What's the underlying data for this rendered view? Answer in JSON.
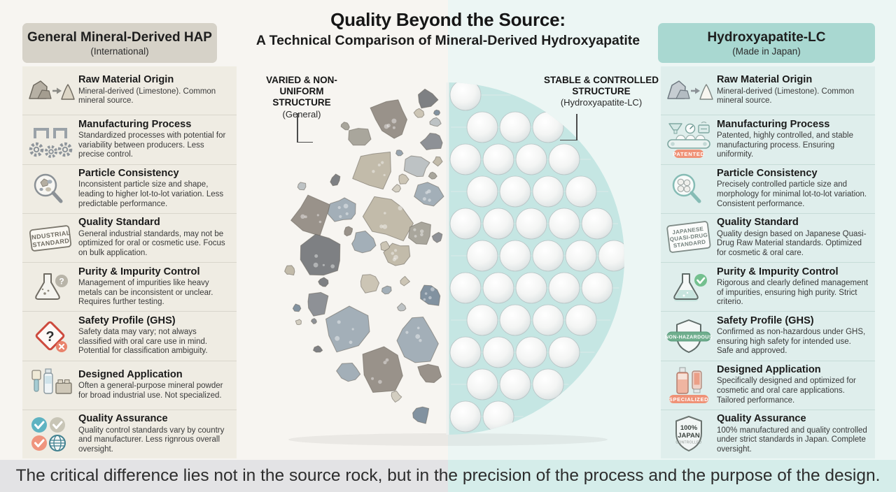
{
  "title": {
    "line1": "Quality Beyond the Source:",
    "line2": "A Technical Comparison of Mineral-Derived Hydroxyapatite"
  },
  "left_panel": {
    "header": {
      "title": "General Mineral-Derived HAP",
      "subtitle": "(International)"
    },
    "rows": [
      {
        "icon": "rocks-to-powder-icon",
        "title": "Raw Material Origin",
        "body": "Mineral-derived (Limestone). Common mineral source."
      },
      {
        "icon": "pipes-gears-icon",
        "title": "Manufacturing Process",
        "body": "Standardized processes with potential for variability between producers. Less precise control."
      },
      {
        "icon": "magnifier-irregular-particles-icon",
        "title": "Particle Consistency",
        "body": "Inconsistent particle size and shape, leading to higher lot-to-lot variation. Less predictable performance."
      },
      {
        "icon": "industrial-standard-stamp-icon",
        "icon_lines": [
          "INDUSTRIAL",
          "STANDARD"
        ],
        "title": "Quality Standard",
        "body": "General industrial standards, may not be optimized for oral or cosmetic use. Focus on bulk application."
      },
      {
        "icon": "flask-question-icon",
        "icon_text": "?",
        "title": "Purity & Impurity Control",
        "body": "Management of impurities like heavy metals can be inconsistent or unclear. Requires further testing."
      },
      {
        "icon": "hazard-question-icon",
        "icon_text": "?",
        "title": "Safety Profile (GHS)",
        "body": "Safety data may vary; not always classified with oral care use in mind. Potential for classification ambiguity."
      },
      {
        "icon": "brush-tube-block-icon",
        "title": "Designed Application",
        "body": "Often a general-purpose mineral powder for broad industrial use. Not specialized."
      },
      {
        "icon": "mixed-checks-globe-icon",
        "title": "Quality Assurance",
        "body": "Quality control standards vary by country and manufacturer. Less rignrous overall oversight."
      }
    ]
  },
  "right_panel": {
    "header": {
      "title": "Hydroxyapatite-LC",
      "subtitle": "(Made in Japan)"
    },
    "rows": [
      {
        "icon": "rocks-to-powder-icon",
        "title": "Raw Material Origin",
        "body": "Mineral-derived (Limestone). Common mineral source."
      },
      {
        "icon": "conveyor-patented-icon",
        "icon_text": "PATENTED",
        "title": "Manufacturing Process",
        "body": "Patented, highly controlled, and stable manufacturing process. Ensuring uniformity."
      },
      {
        "icon": "magnifier-uniform-particles-icon",
        "title": "Particle Consistency",
        "body": "Precisely controlled particle size and morphology for minimal lot-to-lot variation. Consistent performance."
      },
      {
        "icon": "japanese-quasi-drug-stamp-icon",
        "icon_lines": [
          "JAPANESE",
          "QUASI-DRUG",
          "STANDARD"
        ],
        "title": "Quality Standard",
        "body": "Quality design based on Japanese Quasi-Drug Raw Material standards. Optimized for cosmetic & oral care."
      },
      {
        "icon": "flask-check-icon",
        "title": "Purity & Impurity Control",
        "body": "Rigorous and clearly defined management of impurities, ensuring high purity. Strict criterio."
      },
      {
        "icon": "shield-non-hazardous-icon",
        "icon_text": "NON-HAZARDOUS",
        "title": "Safety Profile (GHS)",
        "body": "Confirmed as non-hazardous under GHS, ensuring high safety for intended use. Safe and approved."
      },
      {
        "icon": "cosmetics-specialized-icon",
        "icon_text": "SPECIALIZED",
        "title": "Designed Application",
        "body": "Specifically designed and optimized for cosmetic and oral care applications. Tailored performance."
      },
      {
        "icon": "japan-quality-shield-icon",
        "icon_lines": [
          "100%",
          "JAPAN",
          "CONTROLLED"
        ],
        "title": "Quality Assurance",
        "body": "100% manufactured and quality controlled under strict standards in Japan. Complete oversight."
      }
    ]
  },
  "center": {
    "left_label": {
      "line1": "VARIED & NON-UNIFORM",
      "line2": "STRUCTURE",
      "line3": "(General)"
    },
    "right_label": {
      "line1": "STABLE & CONTROLLED",
      "line2": "STRUCTURE",
      "line3": "(Hydroxyapatite-LC)"
    }
  },
  "footer_text": "The critical difference lies not in the source rock, but in the precision of the process and the purpose of the design.",
  "colors": {
    "left_header_bg": "#d6d2c8",
    "right_header_bg": "#a9d8d1",
    "left_panel_bg": "#efece3",
    "right_panel_bg": "#dfeeec",
    "teal_half_disc": "#c5e6e3",
    "accent_salmon": "#ef9277",
    "warn_red": "#cd4b3e",
    "check_green": "#74c08f",
    "check_blue": "#5fb3c2"
  }
}
